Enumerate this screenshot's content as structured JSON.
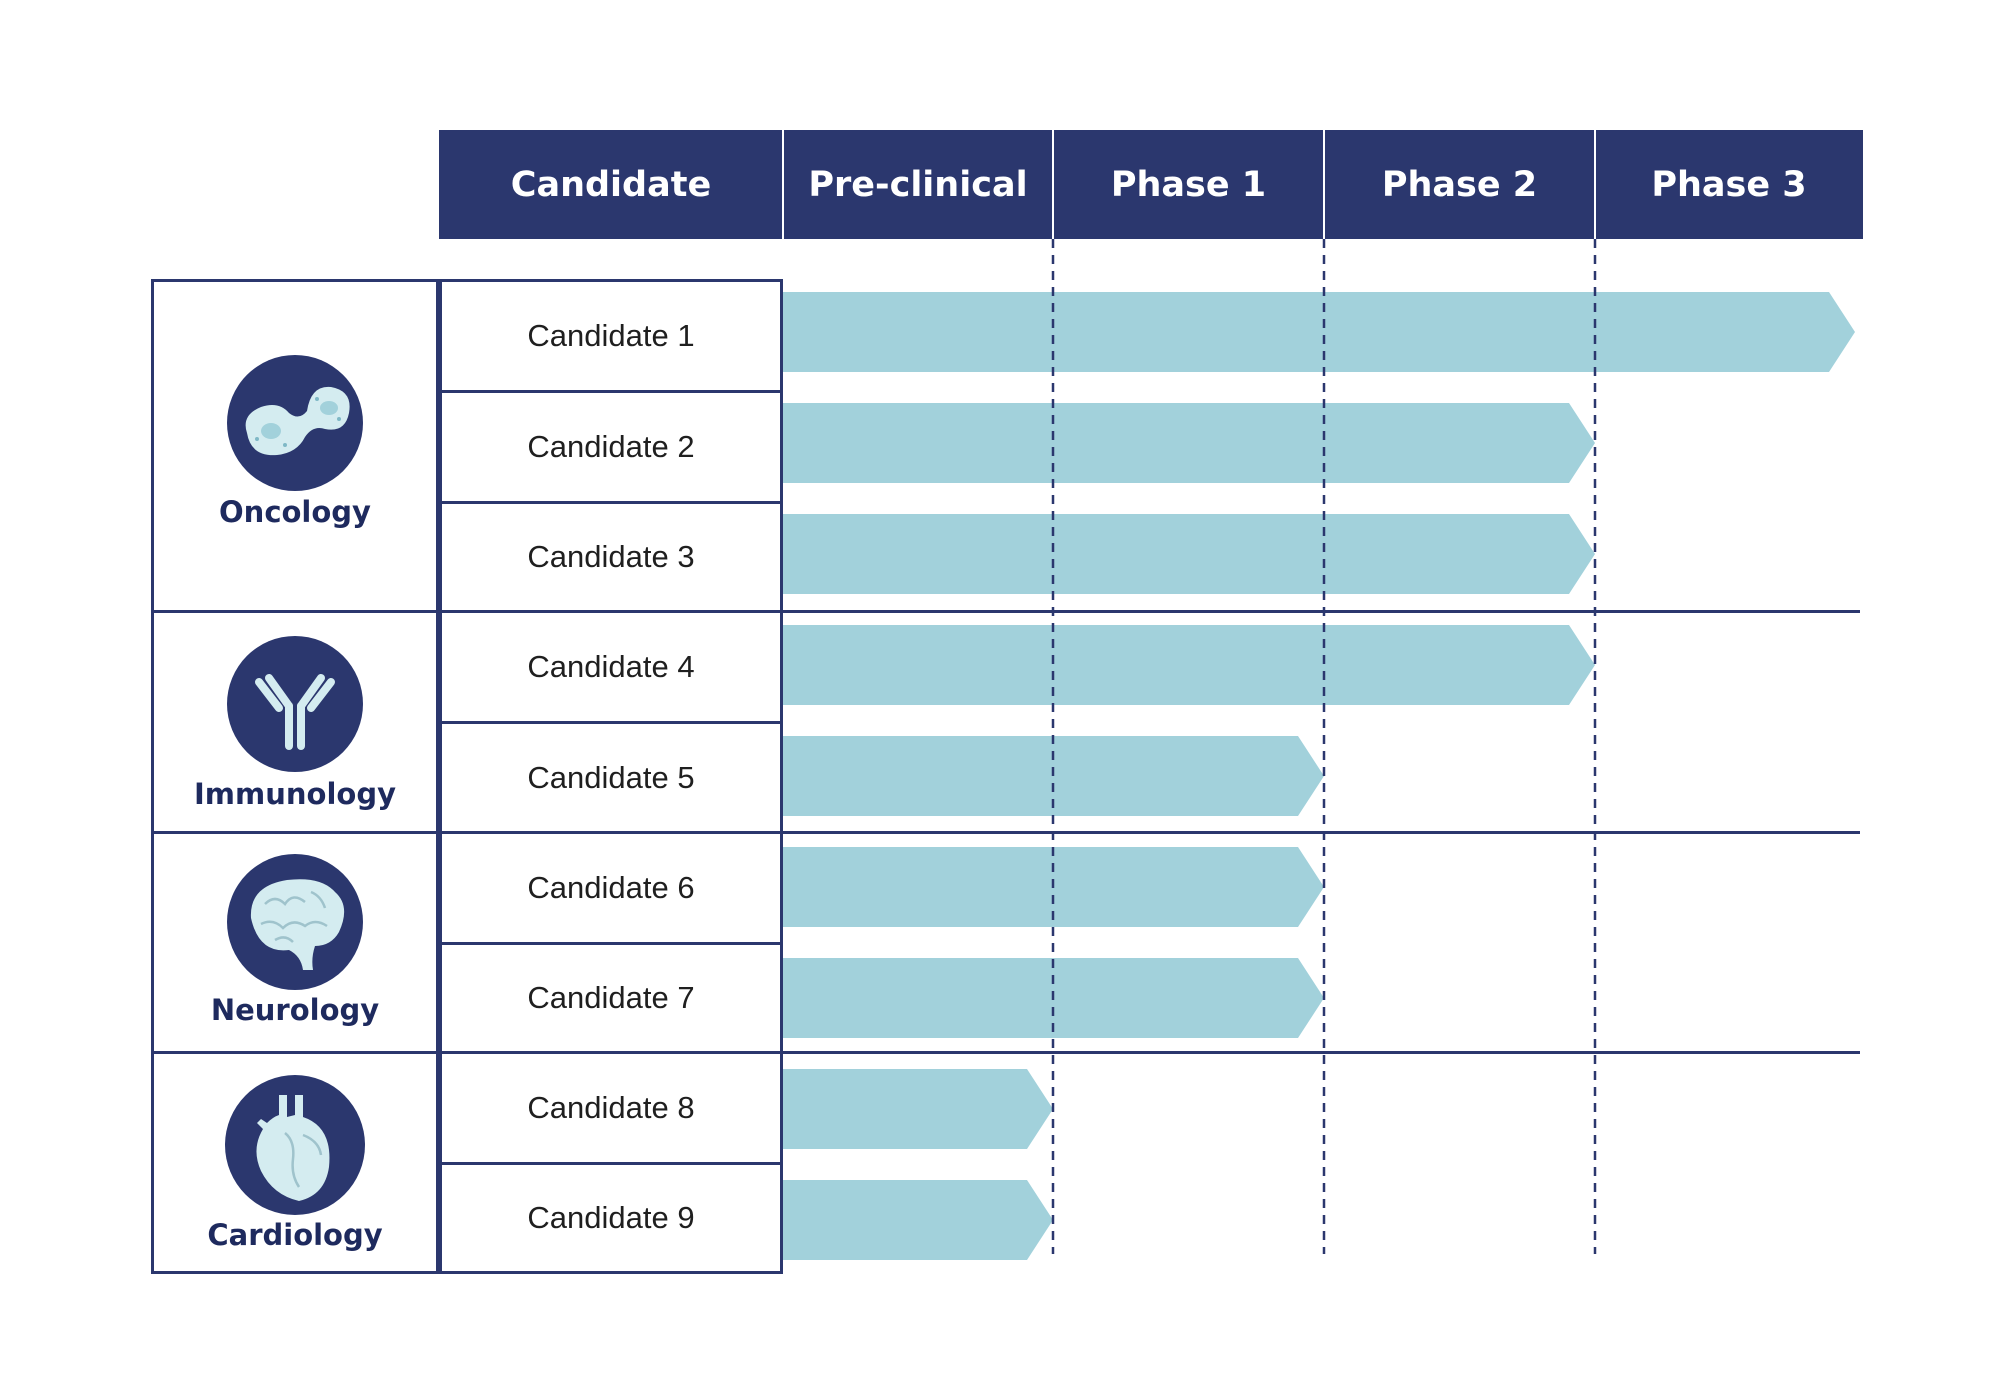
{
  "headers": [
    "Candidate",
    "Pre-clinical",
    "Phase 1",
    "Phase 2",
    "Phase 3"
  ],
  "categories": [
    {
      "label": "Oncology",
      "icon": "cancer-cell-icon"
    },
    {
      "label": "Immunology",
      "icon": "antibody-icon"
    },
    {
      "label": "Neurology",
      "icon": "brain-icon"
    },
    {
      "label": "Cardiology",
      "icon": "heart-icon"
    }
  ],
  "candidates": [
    {
      "name": "Candidate 1",
      "phase_reached": 4
    },
    {
      "name": "Candidate 2",
      "phase_reached": 3
    },
    {
      "name": "Candidate 3",
      "phase_reached": 3
    },
    {
      "name": "Candidate 4",
      "phase_reached": 3
    },
    {
      "name": "Candidate 5",
      "phase_reached": 2
    },
    {
      "name": "Candidate 6",
      "phase_reached": 2
    },
    {
      "name": "Candidate 7",
      "phase_reached": 2
    },
    {
      "name": "Candidate 8",
      "phase_reached": 1
    },
    {
      "name": "Candidate 9",
      "phase_reached": 1
    }
  ],
  "colors": {
    "header": "#2b376e",
    "bar": "#a2d1db",
    "border": "#2b376e",
    "icon_bg": "#2b376e",
    "icon_fg": "#d4ecf0"
  }
}
